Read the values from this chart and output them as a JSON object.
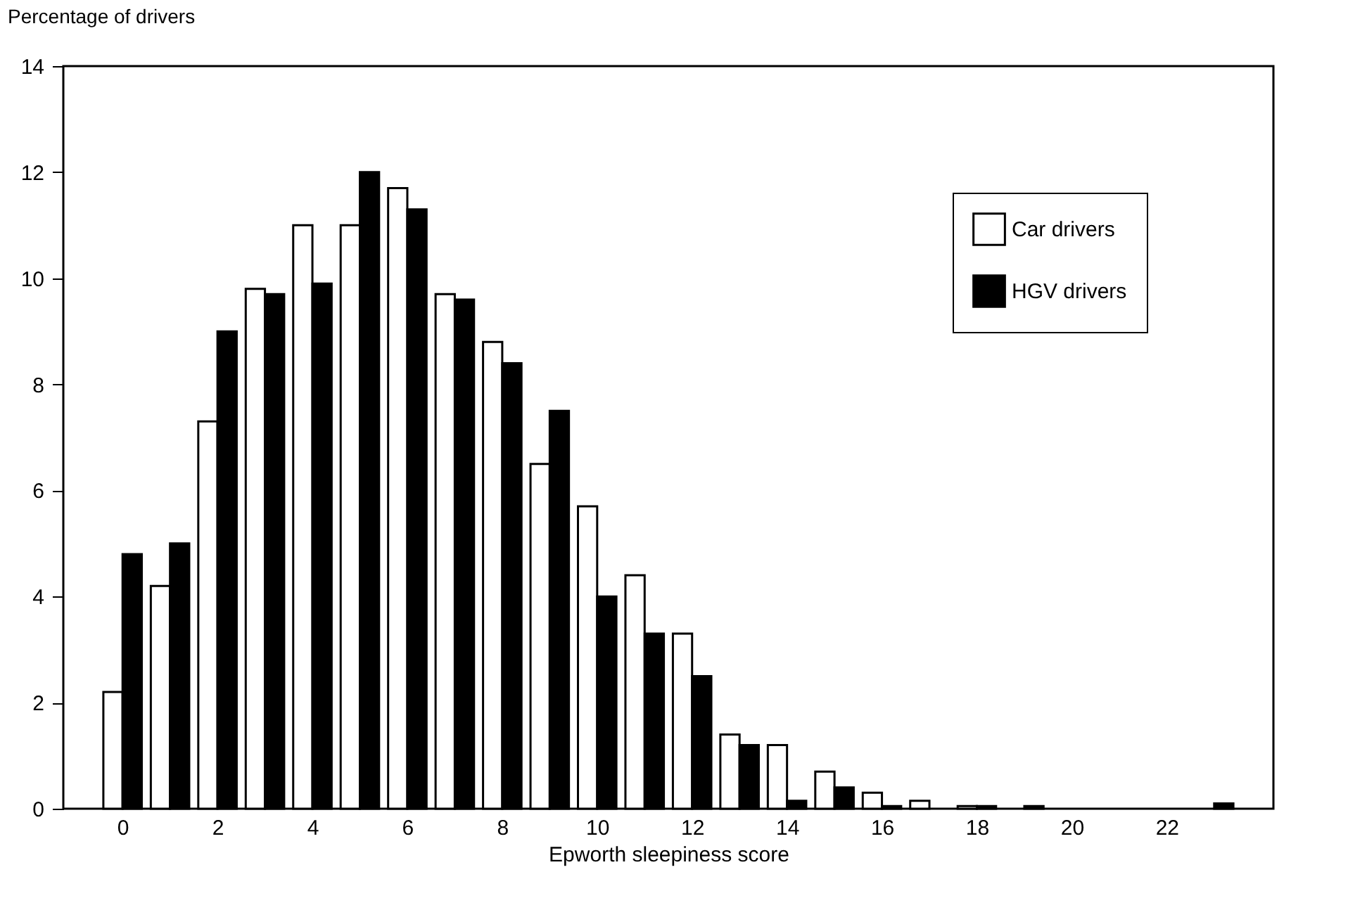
{
  "chart_data": {
    "type": "bar",
    "ylabel": "Percentage of drivers",
    "xlabel": "Epworth sleepiness score",
    "x": [
      0,
      1,
      2,
      3,
      4,
      5,
      6,
      7,
      8,
      9,
      10,
      11,
      12,
      13,
      14,
      15,
      16,
      17,
      18,
      19,
      20,
      21,
      22,
      23
    ],
    "series": [
      {
        "name": "Car drivers",
        "color": "#ffffff",
        "values": [
          2.2,
          4.2,
          7.3,
          9.8,
          11.0,
          11.0,
          11.7,
          9.7,
          8.8,
          6.5,
          5.7,
          4.4,
          3.3,
          1.4,
          1.2,
          0.7,
          0.3,
          0.15,
          0.05,
          0,
          0,
          0,
          0,
          0
        ]
      },
      {
        "name": "HGV drivers",
        "color": "#000000",
        "values": [
          4.8,
          5.0,
          9.0,
          9.7,
          9.9,
          12.0,
          11.3,
          9.6,
          8.4,
          7.5,
          4.0,
          3.3,
          2.5,
          1.2,
          0.15,
          0.4,
          0.05,
          0,
          0.05,
          0.05,
          0,
          0,
          0,
          0.1
        ]
      }
    ],
    "xlim": [
      -1.1,
      24.1
    ],
    "xticks": [
      0,
      2,
      4,
      6,
      8,
      10,
      12,
      14,
      16,
      18,
      20,
      22
    ],
    "ylim": [
      0,
      14
    ],
    "yticks": [
      0,
      2,
      4,
      6,
      8,
      10,
      12,
      14
    ],
    "grid": false,
    "legend": "top right"
  }
}
